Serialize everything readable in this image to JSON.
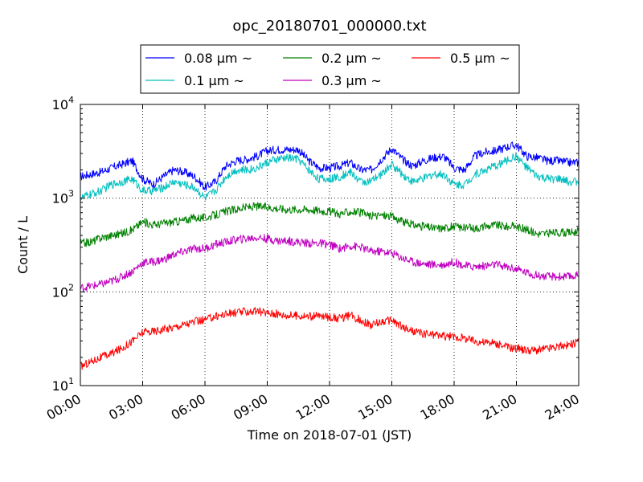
{
  "chart_data": {
    "type": "line",
    "title": "opc_20180701_000000.txt",
    "xlabel": "Time on 2018-07-01 (JST)",
    "ylabel": "Count / L",
    "x_unit": "hours",
    "xlim": [
      0,
      24
    ],
    "ylim": [
      10,
      10000
    ],
    "yscale": "log",
    "grid": true,
    "legend_position": "top-center, above plot",
    "x_ticks": [
      {
        "value": 0,
        "label": "00:00"
      },
      {
        "value": 3,
        "label": "03:00"
      },
      {
        "value": 6,
        "label": "06:00"
      },
      {
        "value": 9,
        "label": "09:00"
      },
      {
        "value": 12,
        "label": "12:00"
      },
      {
        "value": 15,
        "label": "15:00"
      },
      {
        "value": 18,
        "label": "18:00"
      },
      {
        "value": 21,
        "label": "21:00"
      },
      {
        "value": 24,
        "label": "24:00"
      }
    ],
    "y_ticks": [
      {
        "value": 10,
        "base": "10",
        "exp": "1"
      },
      {
        "value": 100,
        "base": "10",
        "exp": "2"
      },
      {
        "value": 1000,
        "base": "10",
        "exp": "3"
      },
      {
        "value": 10000,
        "base": "10",
        "exp": "4"
      }
    ],
    "series": [
      {
        "name": "0.08 μm ~",
        "color": "#0000ff",
        "x": [
          0,
          0.5,
          1,
          1.5,
          2,
          2.5,
          3,
          3.5,
          4,
          4.5,
          5,
          5.5,
          6,
          6.5,
          7,
          7.5,
          8,
          8.5,
          9,
          9.5,
          10,
          10.5,
          11,
          11.5,
          12,
          12.5,
          13,
          13.5,
          14,
          14.5,
          15,
          15.5,
          16,
          16.5,
          17,
          17.5,
          18,
          18.5,
          19,
          19.5,
          20,
          20.5,
          21,
          21.5,
          22,
          22.5,
          23,
          23.5,
          24
        ],
        "y": [
          1700,
          1800,
          1900,
          2100,
          2300,
          2500,
          1600,
          1400,
          1700,
          2000,
          1900,
          1700,
          1300,
          1500,
          2200,
          2500,
          2600,
          2800,
          3200,
          3300,
          3300,
          3300,
          2500,
          2100,
          2100,
          2200,
          2400,
          2000,
          2000,
          2600,
          3400,
          2600,
          2200,
          2500,
          2700,
          2800,
          2100,
          2000,
          2800,
          3100,
          3200,
          3500,
          3700,
          2800,
          2700,
          2500,
          2500,
          2400,
          2400
        ]
      },
      {
        "name": "0.1 μm ~",
        "color": "#00bfbf",
        "x": [
          0,
          0.5,
          1,
          1.5,
          2,
          2.5,
          3,
          3.5,
          4,
          4.5,
          5,
          5.5,
          6,
          6.5,
          7,
          7.5,
          8,
          8.5,
          9,
          9.5,
          10,
          10.5,
          11,
          11.5,
          12,
          12.5,
          13,
          13.5,
          14,
          14.5,
          15,
          15.5,
          16,
          16.5,
          17,
          17.5,
          18,
          18.5,
          19,
          19.5,
          20,
          20.5,
          21,
          21.5,
          22,
          22.5,
          23,
          23.5,
          24
        ],
        "y": [
          1000,
          1100,
          1200,
          1400,
          1500,
          1600,
          1200,
          1200,
          1300,
          1500,
          1400,
          1300,
          1000,
          1200,
          1700,
          2000,
          2000,
          2100,
          2400,
          2600,
          2700,
          2600,
          2000,
          1600,
          1600,
          1700,
          1900,
          1500,
          1500,
          1800,
          2300,
          1800,
          1500,
          1600,
          1800,
          1800,
          1400,
          1400,
          1800,
          2000,
          2200,
          2500,
          2800,
          2100,
          1700,
          1600,
          1600,
          1500,
          1500
        ]
      },
      {
        "name": "0.2 μm ~",
        "color": "#008000",
        "x": [
          0,
          0.5,
          1,
          1.5,
          2,
          2.5,
          3,
          3.5,
          4,
          4.5,
          5,
          5.5,
          6,
          6.5,
          7,
          7.5,
          8,
          8.5,
          9,
          9.5,
          10,
          10.5,
          11,
          11.5,
          12,
          12.5,
          13,
          13.5,
          14,
          14.5,
          15,
          15.5,
          16,
          16.5,
          17,
          17.5,
          18,
          18.5,
          19,
          19.5,
          20,
          20.5,
          21,
          21.5,
          22,
          22.5,
          23,
          23.5,
          24
        ],
        "y": [
          330,
          340,
          380,
          400,
          420,
          460,
          560,
          520,
          540,
          560,
          580,
          620,
          620,
          660,
          720,
          760,
          800,
          820,
          800,
          780,
          760,
          760,
          760,
          740,
          720,
          680,
          720,
          700,
          640,
          660,
          640,
          560,
          520,
          500,
          480,
          480,
          500,
          480,
          480,
          500,
          520,
          500,
          500,
          460,
          420,
          420,
          430,
          430,
          440
        ]
      },
      {
        "name": "0.3 μm ~",
        "color": "#bf00bf",
        "x": [
          0,
          0.5,
          1,
          1.5,
          2,
          2.5,
          3,
          3.5,
          4,
          4.5,
          5,
          5.5,
          6,
          6.5,
          7,
          7.5,
          8,
          8.5,
          9,
          9.5,
          10,
          10.5,
          11,
          11.5,
          12,
          12.5,
          13,
          13.5,
          14,
          14.5,
          15,
          15.5,
          16,
          16.5,
          17,
          17.5,
          18,
          18.5,
          19,
          19.5,
          20,
          20.5,
          21,
          21.5,
          22,
          22.5,
          23,
          23.5,
          24
        ],
        "y": [
          110,
          115,
          120,
          130,
          145,
          165,
          205,
          210,
          220,
          250,
          270,
          290,
          290,
          320,
          340,
          360,
          370,
          380,
          370,
          350,
          350,
          340,
          330,
          330,
          320,
          290,
          310,
          300,
          270,
          270,
          260,
          230,
          210,
          200,
          195,
          195,
          210,
          190,
          185,
          190,
          195,
          185,
          175,
          160,
          150,
          145,
          145,
          145,
          150
        ]
      },
      {
        "name": "0.5 μm ~",
        "color": "#ff0000",
        "x": [
          0,
          0.5,
          1,
          1.5,
          2,
          2.5,
          3,
          3.5,
          4,
          4.5,
          5,
          5.5,
          6,
          6.5,
          7,
          7.5,
          8,
          8.5,
          9,
          9.5,
          10,
          10.5,
          11,
          11.5,
          12,
          12.5,
          13,
          13.5,
          14,
          14.5,
          15,
          15.5,
          16,
          16.5,
          17,
          17.5,
          18,
          18.5,
          19,
          19.5,
          20,
          20.5,
          21,
          21.5,
          22,
          22.5,
          23,
          23.5,
          24
        ],
        "y": [
          16,
          18,
          20,
          22,
          25,
          30,
          37,
          38,
          40,
          42,
          45,
          48,
          50,
          55,
          58,
          60,
          62,
          62,
          60,
          58,
          56,
          56,
          55,
          55,
          54,
          52,
          56,
          50,
          44,
          48,
          50,
          42,
          38,
          36,
          35,
          34,
          33,
          32,
          30,
          29,
          28,
          26,
          25,
          24,
          24,
          25,
          26,
          27,
          29
        ]
      }
    ]
  }
}
